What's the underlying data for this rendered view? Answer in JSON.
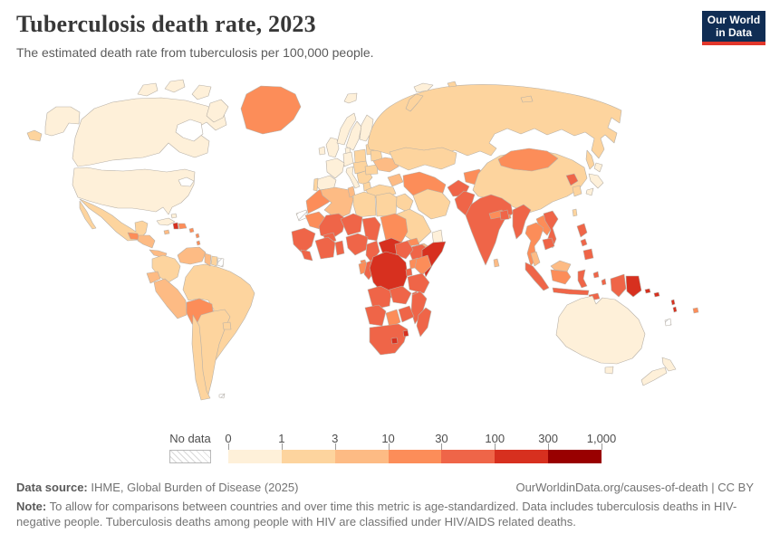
{
  "header": {
    "title": "Tuberculosis death rate, 2023",
    "subtitle": "The estimated death rate from tuberculosis per 100,000 people.",
    "logo_line1": "Our World",
    "logo_line2": "in Data"
  },
  "colors": {
    "logo_background": "#102D54",
    "logo_accent": "#E2372B",
    "map_border": "#b7b0a7",
    "no_data_hatch": "#d8d8d8"
  },
  "legend": {
    "no_data_label": "No data",
    "ticks": [
      "0",
      "1",
      "3",
      "10",
      "30",
      "100",
      "300",
      "1,000"
    ]
  },
  "map": {
    "palette": [
      "#fef0d9",
      "#fdd49e",
      "#fdbb84",
      "#fc8d59",
      "#ef6548",
      "#d7301f",
      "#990000"
    ],
    "countries": {
      "united-states": 0,
      "canada": 0,
      "greenland": 3,
      "iceland": 0,
      "mexico": 1,
      "guatemala": 3,
      "honduras-nicaragua": 2,
      "costa-rica-panama": 2,
      "cuba": 0,
      "haiti": 5,
      "dominican-republic": 3,
      "jamaica": 2,
      "puerto-rico": 3,
      "bahamas": 0,
      "lesser-antilles": 3,
      "colombia": 1,
      "venezuela": 2,
      "guyana": 2,
      "suriname": 1,
      "french-guiana": "nd",
      "ecuador": 2,
      "peru": 2,
      "bolivia": 3,
      "brazil": 1,
      "paraguay": 2,
      "uruguay": 1,
      "argentina": 1,
      "chile": 1,
      "falkland-islands": "nd",
      "united-kingdom": 0,
      "ireland": 0,
      "norway": 0,
      "sweden": 0,
      "finland": 0,
      "denmark": 0,
      "germany": 0,
      "france": 0,
      "spain": 0,
      "portugal": 1,
      "italy": 0,
      "poland": 1,
      "central-europe": 1,
      "balkans": 1,
      "romania": 1,
      "greece": 1,
      "baltic-states": 1,
      "belarus": 1,
      "ukraine": 2,
      "russia": 1,
      "kazakhstan": 1,
      "caucasus": 2,
      "central-asia": 3,
      "kyrgyzstan-tajikistan": 3,
      "turkey": 1,
      "iraq-syria": 1,
      "iran": 1,
      "saudi-arabia": 1,
      "yemen": 2,
      "oman": 0,
      "afghanistan": 4,
      "pakistan": 4,
      "india": 4,
      "nepal": 3,
      "bhutan": 3,
      "bangladesh": 4,
      "sri-lanka": 2,
      "china": 1,
      "mongolia": 3,
      "north-korea": 4,
      "south-korea": 1,
      "japan": 0,
      "taiwan": 1,
      "myanmar": 4,
      "thailand": 3,
      "laos": 3,
      "vietnam": 4,
      "cambodia": 4,
      "malaysia": 2,
      "sumatra": 4,
      "java": 4,
      "borneo-malaysia": 2,
      "borneo-indonesia": 3,
      "sulawesi": 4,
      "moluccas": 4,
      "timor": 4,
      "philippines": 4,
      "new-guinea-west": 4,
      "papua-new-guinea": 5,
      "solomon-islands": 5,
      "vanuatu": 5,
      "fiji": 3,
      "new-caledonia": "nd",
      "australia": 0,
      "new-zealand": 0,
      "morocco": 3,
      "algeria": 2,
      "tunisia": 2,
      "libya": 1,
      "egypt": 1,
      "western-sahara": "nd",
      "mauritania": 3,
      "mali": 4,
      "niger": 4,
      "chad": 4,
      "sudan": 3,
      "eritrea": 3,
      "djibouti": 3,
      "ethiopia": 4,
      "somalia": 5,
      "senegal": 4,
      "sierra-leone-liberia": 4,
      "cote-divoire-ghana": 4,
      "burkina-faso": 4,
      "togo-benin": 4,
      "nigeria": 4,
      "cameroon": 4,
      "central-african-republic": 5,
      "south-sudan": 4,
      "uganda": 3,
      "kenya": 3,
      "rwanda-burundi": 4,
      "democratic-republic-of-congo": 5,
      "gabon": 3,
      "congo": 4,
      "equatorial-guinea": 3,
      "tanzania": 4,
      "angola": 4,
      "zambia": 4,
      "malawi": 4,
      "mozambique": 4,
      "zimbabwe": 4,
      "botswana": 3,
      "namibia": 4,
      "south-africa": 4,
      "lesotho": 5,
      "eswatini": 5,
      "madagascar": 4
    }
  },
  "footer": {
    "source_label": "Data source:",
    "source_text": " IHME, Global Burden of Disease (2025)",
    "credit": "OurWorldinData.org/causes-of-death | CC BY",
    "note_label": "Note:",
    "note_text": " To allow for comparisons between countries and over time this metric is age-standardized. Data includes tuberculosis deaths in HIV-negative people. Tuberculosis deaths among people with HIV are classified under HIV/AIDS related deaths."
  }
}
